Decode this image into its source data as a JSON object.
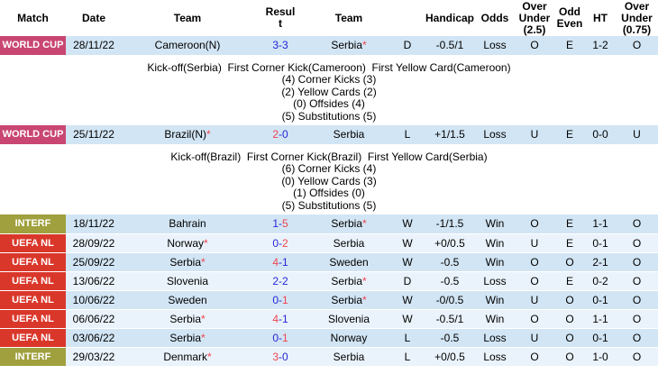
{
  "palette": {
    "blue": "#2626d8",
    "red": "#ef4550",
    "green": "#2f8a2f",
    "worldcup_bg": "#c94672",
    "interf_bg": "#a0a03e",
    "uefanl_bg": "#da372b",
    "stripe_dark": "#d2e5f4",
    "stripe_light": "#eaf3fb"
  },
  "columns": [
    "Match",
    "Date",
    "Team",
    "Result",
    "Team",
    "",
    "Handicap",
    "Odds",
    "Over Under (2.5)",
    "Odd Even",
    "HT",
    "Over Under (0.75)"
  ],
  "rows": [
    {
      "league": "WORLD CUP",
      "league_class": "worldcup",
      "date": "28/11/22",
      "team1": {
        "n": "Cameroon(N)",
        "c": "black",
        "star": false
      },
      "score": {
        "a": "3",
        "ac": "blue",
        "b": "3",
        "bc": "blue"
      },
      "team2": {
        "n": "Serbia",
        "c": "blue",
        "star": true
      },
      "wdl": {
        "t": "D",
        "c": "blue"
      },
      "handicap": "-0.5/1",
      "odds": {
        "t": "Loss",
        "c": "green"
      },
      "ou25": {
        "t": "O",
        "c": "red"
      },
      "oe": {
        "t": "E",
        "c": "red"
      },
      "ht": "1-2",
      "ou075": {
        "t": "O",
        "c": "red"
      },
      "stripe": "dark",
      "detail": [
        "Kick-off(Serbia)  First Corner Kick(Cameroon)  First Yellow Card(Cameroon)",
        "(4) Corner Kicks (3)",
        "(2) Yellow Cards (2)",
        "(0) Offsides (4)",
        "(5) Substitutions (5)"
      ]
    },
    {
      "league": "WORLD CUP",
      "league_class": "worldcup",
      "date": "25/11/22",
      "team1": {
        "n": "Brazil(N)",
        "c": "black",
        "star": true
      },
      "score": {
        "a": "2",
        "ac": "red",
        "b": "0",
        "bc": "blue"
      },
      "team2": {
        "n": "Serbia",
        "c": "green",
        "star": false
      },
      "wdl": {
        "t": "L",
        "c": "green"
      },
      "handicap": "+1/1.5",
      "odds": {
        "t": "Loss",
        "c": "green"
      },
      "ou25": {
        "t": "U",
        "c": "green"
      },
      "oe": {
        "t": "E",
        "c": "red"
      },
      "ht": "0-0",
      "ou075": {
        "t": "U",
        "c": "green"
      },
      "stripe": "dark",
      "detail": [
        "Kick-off(Brazil)  First Corner Kick(Brazil)  First Yellow Card(Serbia)",
        "(6) Corner Kicks (4)",
        "(0) Yellow Cards (3)",
        "(1) Offsides (0)",
        "(5) Substitutions (5)"
      ]
    },
    {
      "league": "INTERF",
      "league_class": "interf",
      "date": "18/11/22",
      "team1": {
        "n": "Bahrain",
        "c": "black",
        "star": false
      },
      "score": {
        "a": "1",
        "ac": "blue",
        "b": "5",
        "bc": "red"
      },
      "team2": {
        "n": "Serbia",
        "c": "red",
        "star": true
      },
      "wdl": {
        "t": "W",
        "c": "red"
      },
      "handicap": "-1/1.5",
      "odds": {
        "t": "Win",
        "c": "red"
      },
      "ou25": {
        "t": "O",
        "c": "red"
      },
      "oe": {
        "t": "E",
        "c": "red"
      },
      "ht": "1-1",
      "ou075": {
        "t": "O",
        "c": "red"
      },
      "stripe": "dark",
      "detail": null
    },
    {
      "league": "UEFA NL",
      "league_class": "uefanl",
      "date": "28/09/22",
      "team1": {
        "n": "Norway",
        "c": "black",
        "star": true
      },
      "score": {
        "a": "0",
        "ac": "blue",
        "b": "2",
        "bc": "red"
      },
      "team2": {
        "n": "Serbia",
        "c": "red",
        "star": false
      },
      "wdl": {
        "t": "W",
        "c": "red"
      },
      "handicap": "+0/0.5",
      "odds": {
        "t": "Win",
        "c": "red"
      },
      "ou25": {
        "t": "U",
        "c": "green"
      },
      "oe": {
        "t": "E",
        "c": "red"
      },
      "ht": "0-1",
      "ou075": {
        "t": "O",
        "c": "red"
      },
      "stripe": "light",
      "detail": null
    },
    {
      "league": "UEFA NL",
      "league_class": "uefanl",
      "date": "25/09/22",
      "team1": {
        "n": "Serbia",
        "c": "red",
        "star": true
      },
      "score": {
        "a": "4",
        "ac": "red",
        "b": "1",
        "bc": "blue"
      },
      "team2": {
        "n": "Sweden",
        "c": "black",
        "star": false
      },
      "wdl": {
        "t": "W",
        "c": "red"
      },
      "handicap": "-0.5",
      "odds": {
        "t": "Win",
        "c": "red"
      },
      "ou25": {
        "t": "O",
        "c": "red"
      },
      "oe": {
        "t": "O",
        "c": "green"
      },
      "ht": "2-1",
      "ou075": {
        "t": "O",
        "c": "red"
      },
      "stripe": "dark",
      "detail": null
    },
    {
      "league": "UEFA NL",
      "league_class": "uefanl",
      "date": "13/06/22",
      "team1": {
        "n": "Slovenia",
        "c": "black",
        "star": false
      },
      "score": {
        "a": "2",
        "ac": "blue",
        "b": "2",
        "bc": "blue"
      },
      "team2": {
        "n": "Serbia",
        "c": "blue",
        "star": true
      },
      "wdl": {
        "t": "D",
        "c": "blue"
      },
      "handicap": "-0.5",
      "odds": {
        "t": "Loss",
        "c": "green"
      },
      "ou25": {
        "t": "O",
        "c": "red"
      },
      "oe": {
        "t": "E",
        "c": "red"
      },
      "ht": "0-2",
      "ou075": {
        "t": "O",
        "c": "red"
      },
      "stripe": "light",
      "detail": null
    },
    {
      "league": "UEFA NL",
      "league_class": "uefanl",
      "date": "10/06/22",
      "team1": {
        "n": "Sweden",
        "c": "black",
        "star": false
      },
      "score": {
        "a": "0",
        "ac": "blue",
        "b": "1",
        "bc": "red"
      },
      "team2": {
        "n": "Serbia",
        "c": "red",
        "star": true
      },
      "wdl": {
        "t": "W",
        "c": "red"
      },
      "handicap": "-0/0.5",
      "odds": {
        "t": "Win",
        "c": "red"
      },
      "ou25": {
        "t": "U",
        "c": "green"
      },
      "oe": {
        "t": "O",
        "c": "green"
      },
      "ht": "0-1",
      "ou075": {
        "t": "O",
        "c": "red"
      },
      "stripe": "dark",
      "detail": null
    },
    {
      "league": "UEFA NL",
      "league_class": "uefanl",
      "date": "06/06/22",
      "team1": {
        "n": "Serbia",
        "c": "red",
        "star": true
      },
      "score": {
        "a": "4",
        "ac": "red",
        "b": "1",
        "bc": "blue"
      },
      "team2": {
        "n": "Slovenia",
        "c": "black",
        "star": false
      },
      "wdl": {
        "t": "W",
        "c": "red"
      },
      "handicap": "-0.5/1",
      "odds": {
        "t": "Win",
        "c": "red"
      },
      "ou25": {
        "t": "O",
        "c": "red"
      },
      "oe": {
        "t": "O",
        "c": "green"
      },
      "ht": "1-1",
      "ou075": {
        "t": "O",
        "c": "red"
      },
      "stripe": "light",
      "detail": null
    },
    {
      "league": "UEFA NL",
      "league_class": "uefanl",
      "date": "03/06/22",
      "team1": {
        "n": "Serbia",
        "c": "green",
        "star": true
      },
      "score": {
        "a": "0",
        "ac": "blue",
        "b": "1",
        "bc": "red"
      },
      "team2": {
        "n": "Norway",
        "c": "black",
        "star": false
      },
      "wdl": {
        "t": "L",
        "c": "green"
      },
      "handicap": "-0.5",
      "odds": {
        "t": "Loss",
        "c": "green"
      },
      "ou25": {
        "t": "U",
        "c": "green"
      },
      "oe": {
        "t": "O",
        "c": "green"
      },
      "ht": "0-1",
      "ou075": {
        "t": "O",
        "c": "red"
      },
      "stripe": "dark",
      "detail": null
    },
    {
      "league": "INTERF",
      "league_class": "interf",
      "date": "29/03/22",
      "team1": {
        "n": "Denmark",
        "c": "black",
        "star": true
      },
      "score": {
        "a": "3",
        "ac": "red",
        "b": "0",
        "bc": "blue"
      },
      "team2": {
        "n": "Serbia",
        "c": "green",
        "star": false
      },
      "wdl": {
        "t": "L",
        "c": "green"
      },
      "handicap": "+0/0.5",
      "odds": {
        "t": "Loss",
        "c": "green"
      },
      "ou25": {
        "t": "O",
        "c": "red"
      },
      "oe": {
        "t": "O",
        "c": "green"
      },
      "ht": "1-0",
      "ou075": {
        "t": "O",
        "c": "red"
      },
      "stripe": "light",
      "detail": null
    }
  ]
}
